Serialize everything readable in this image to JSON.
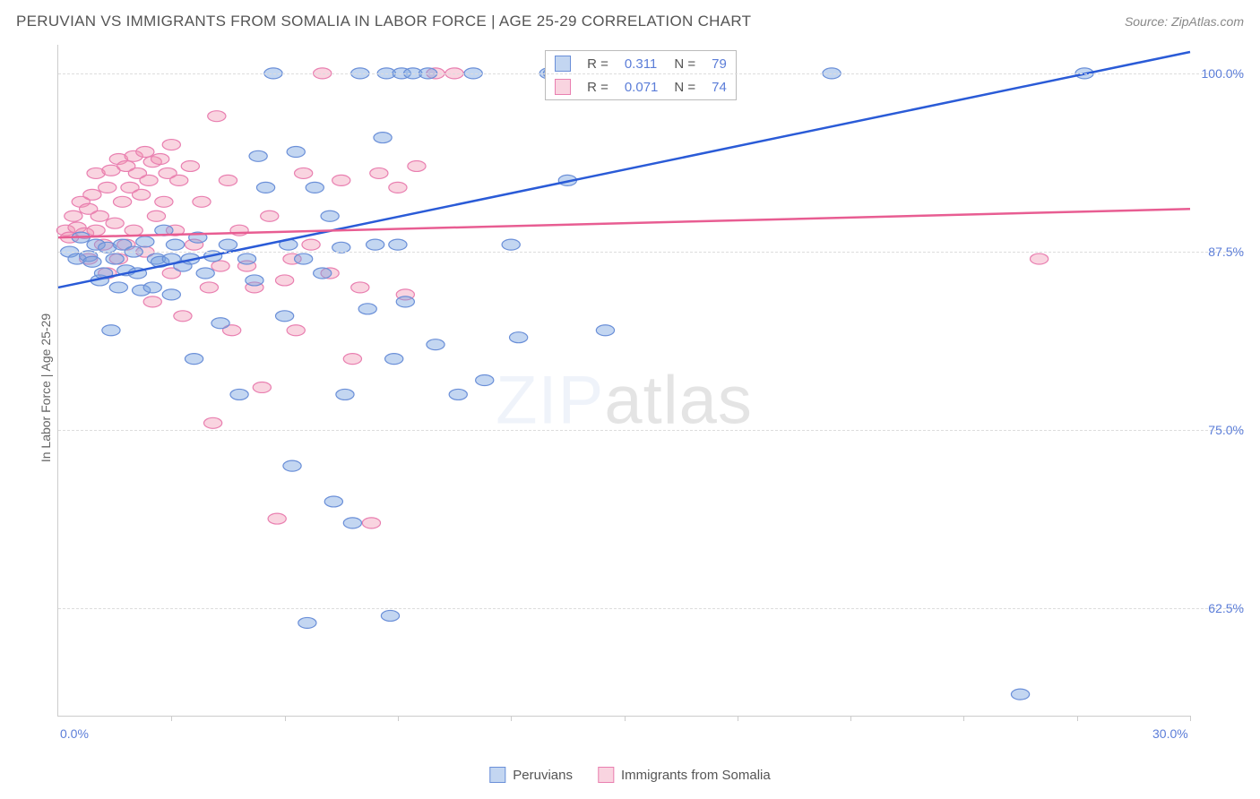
{
  "header": {
    "title": "PERUVIAN VS IMMIGRANTS FROM SOMALIA IN LABOR FORCE | AGE 25-29 CORRELATION CHART",
    "source": "Source: ZipAtlas.com"
  },
  "chart": {
    "type": "scatter",
    "y_axis_label": "In Labor Force | Age 25-29",
    "xlim": [
      0.0,
      30.0
    ],
    "ylim": [
      55.0,
      102.0
    ],
    "x_tick_labels": [
      "0.0%",
      "30.0%"
    ],
    "x_tick_positions": [
      0.0,
      30.0
    ],
    "x_minor_ticks": [
      3.0,
      6.0,
      9.0,
      12.0,
      15.0,
      18.0,
      21.0,
      24.0,
      27.0,
      30.0
    ],
    "y_grid": [
      {
        "value": 62.5,
        "label": "62.5%"
      },
      {
        "value": 75.0,
        "label": "75.0%"
      },
      {
        "value": 87.5,
        "label": "87.5%"
      },
      {
        "value": 100.0,
        "label": "100.0%"
      }
    ],
    "tick_color": "#5b7dd8",
    "axis_text_color": "#666666",
    "watermark": {
      "pre": "ZIP",
      "post": "atlas"
    },
    "series": [
      {
        "name": "Peruvians",
        "color_fill": "rgba(122,163,224,0.45)",
        "color_stroke": "#6a8fd8",
        "trend_color": "#2a5bd7",
        "R": "0.311",
        "N": "79",
        "trend": {
          "x1": 0.0,
          "y1": 85.0,
          "x2": 30.0,
          "y2": 101.5
        },
        "points": [
          [
            0.3,
            87.5
          ],
          [
            0.5,
            87.0
          ],
          [
            0.6,
            88.5
          ],
          [
            0.8,
            87.2
          ],
          [
            0.9,
            86.8
          ],
          [
            1.0,
            88.0
          ],
          [
            1.1,
            85.5
          ],
          [
            1.2,
            86.0
          ],
          [
            1.3,
            87.8
          ],
          [
            1.4,
            82.0
          ],
          [
            1.5,
            87.0
          ],
          [
            1.6,
            85.0
          ],
          [
            1.7,
            88.0
          ],
          [
            1.8,
            86.2
          ],
          [
            2.0,
            87.5
          ],
          [
            2.1,
            86.0
          ],
          [
            2.2,
            84.8
          ],
          [
            2.3,
            88.2
          ],
          [
            2.5,
            85.0
          ],
          [
            2.6,
            87.0
          ],
          [
            2.7,
            86.8
          ],
          [
            2.8,
            89.0
          ],
          [
            3.0,
            87.0
          ],
          [
            3.0,
            84.5
          ],
          [
            3.1,
            88.0
          ],
          [
            3.3,
            86.5
          ],
          [
            3.5,
            87.0
          ],
          [
            3.6,
            80.0
          ],
          [
            3.7,
            88.5
          ],
          [
            3.9,
            86.0
          ],
          [
            4.1,
            87.2
          ],
          [
            4.3,
            82.5
          ],
          [
            4.5,
            88.0
          ],
          [
            4.8,
            77.5
          ],
          [
            5.0,
            87.0
          ],
          [
            5.2,
            85.5
          ],
          [
            5.3,
            94.2
          ],
          [
            5.5,
            92.0
          ],
          [
            5.7,
            100.0
          ],
          [
            6.0,
            83.0
          ],
          [
            6.1,
            88.0
          ],
          [
            6.2,
            72.5
          ],
          [
            6.3,
            94.5
          ],
          [
            6.5,
            87.0
          ],
          [
            6.6,
            61.5
          ],
          [
            6.8,
            92.0
          ],
          [
            7.0,
            86.0
          ],
          [
            7.2,
            90.0
          ],
          [
            7.3,
            70.0
          ],
          [
            7.5,
            87.8
          ],
          [
            7.6,
            77.5
          ],
          [
            7.8,
            68.5
          ],
          [
            8.0,
            100.0
          ],
          [
            8.2,
            83.5
          ],
          [
            8.4,
            88.0
          ],
          [
            8.6,
            95.5
          ],
          [
            8.7,
            100.0
          ],
          [
            8.8,
            62.0
          ],
          [
            8.9,
            80.0
          ],
          [
            9.0,
            88.0
          ],
          [
            9.1,
            100.0
          ],
          [
            9.2,
            84.0
          ],
          [
            9.4,
            100.0
          ],
          [
            9.8,
            100.0
          ],
          [
            10.0,
            81.0
          ],
          [
            10.6,
            77.5
          ],
          [
            11.0,
            100.0
          ],
          [
            11.3,
            78.5
          ],
          [
            12.0,
            88.0
          ],
          [
            12.2,
            81.5
          ],
          [
            13.0,
            100.0
          ],
          [
            13.1,
            100.0
          ],
          [
            13.5,
            92.5
          ],
          [
            14.0,
            100.0
          ],
          [
            14.5,
            82.0
          ],
          [
            16.5,
            100.0
          ],
          [
            20.5,
            100.0
          ],
          [
            25.5,
            56.5
          ],
          [
            27.2,
            100.0
          ]
        ]
      },
      {
        "name": "Immigants from Somalia",
        "legend_label": "Immigrants from Somalia",
        "color_fill": "rgba(240,148,178,0.40)",
        "color_stroke": "#e97fb0",
        "trend_color": "#e85d92",
        "R": "0.071",
        "N": "74",
        "trend": {
          "x1": 0.0,
          "y1": 88.5,
          "x2": 30.0,
          "y2": 90.5
        },
        "points": [
          [
            0.2,
            89.0
          ],
          [
            0.3,
            88.5
          ],
          [
            0.4,
            90.0
          ],
          [
            0.5,
            89.2
          ],
          [
            0.6,
            91.0
          ],
          [
            0.7,
            88.8
          ],
          [
            0.8,
            90.5
          ],
          [
            0.8,
            87.0
          ],
          [
            0.9,
            91.5
          ],
          [
            1.0,
            89.0
          ],
          [
            1.0,
            93.0
          ],
          [
            1.1,
            90.0
          ],
          [
            1.2,
            88.0
          ],
          [
            1.3,
            92.0
          ],
          [
            1.3,
            86.0
          ],
          [
            1.4,
            93.2
          ],
          [
            1.5,
            89.5
          ],
          [
            1.6,
            94.0
          ],
          [
            1.6,
            87.0
          ],
          [
            1.7,
            91.0
          ],
          [
            1.8,
            93.5
          ],
          [
            1.8,
            88.0
          ],
          [
            1.9,
            92.0
          ],
          [
            2.0,
            94.2
          ],
          [
            2.0,
            89.0
          ],
          [
            2.1,
            93.0
          ],
          [
            2.2,
            91.5
          ],
          [
            2.3,
            94.5
          ],
          [
            2.3,
            87.5
          ],
          [
            2.4,
            92.5
          ],
          [
            2.5,
            93.8
          ],
          [
            2.5,
            84.0
          ],
          [
            2.6,
            90.0
          ],
          [
            2.7,
            94.0
          ],
          [
            2.8,
            91.0
          ],
          [
            2.9,
            93.0
          ],
          [
            3.0,
            95.0
          ],
          [
            3.0,
            86.0
          ],
          [
            3.1,
            89.0
          ],
          [
            3.2,
            92.5
          ],
          [
            3.3,
            83.0
          ],
          [
            3.5,
            93.5
          ],
          [
            3.6,
            88.0
          ],
          [
            3.8,
            91.0
          ],
          [
            4.0,
            85.0
          ],
          [
            4.1,
            75.5
          ],
          [
            4.2,
            97.0
          ],
          [
            4.3,
            86.5
          ],
          [
            4.5,
            92.5
          ],
          [
            4.6,
            82.0
          ],
          [
            4.8,
            89.0
          ],
          [
            5.0,
            86.5
          ],
          [
            5.2,
            85.0
          ],
          [
            5.4,
            78.0
          ],
          [
            5.6,
            90.0
          ],
          [
            5.8,
            68.8
          ],
          [
            6.0,
            85.5
          ],
          [
            6.3,
            82.0
          ],
          [
            6.5,
            93.0
          ],
          [
            6.7,
            88.0
          ],
          [
            7.0,
            100.0
          ],
          [
            7.2,
            86.0
          ],
          [
            7.5,
            92.5
          ],
          [
            7.8,
            80.0
          ],
          [
            8.0,
            85.0
          ],
          [
            8.3,
            68.5
          ],
          [
            8.5,
            93.0
          ],
          [
            9.0,
            92.0
          ],
          [
            9.5,
            93.5
          ],
          [
            10.0,
            100.0
          ],
          [
            10.5,
            100.0
          ],
          [
            26.0,
            87.0
          ],
          [
            9.2,
            84.5
          ],
          [
            6.2,
            87.0
          ]
        ]
      }
    ],
    "marker_radius": 8,
    "marker_stroke_width": 1.2,
    "trend_line_width": 2.5,
    "bottom_legend": [
      {
        "label": "Peruvians",
        "fill": "rgba(122,163,224,0.45)",
        "stroke": "#6a8fd8"
      },
      {
        "label": "Immigrants from Somalia",
        "fill": "rgba(240,148,178,0.40)",
        "stroke": "#e97fb0"
      }
    ]
  }
}
